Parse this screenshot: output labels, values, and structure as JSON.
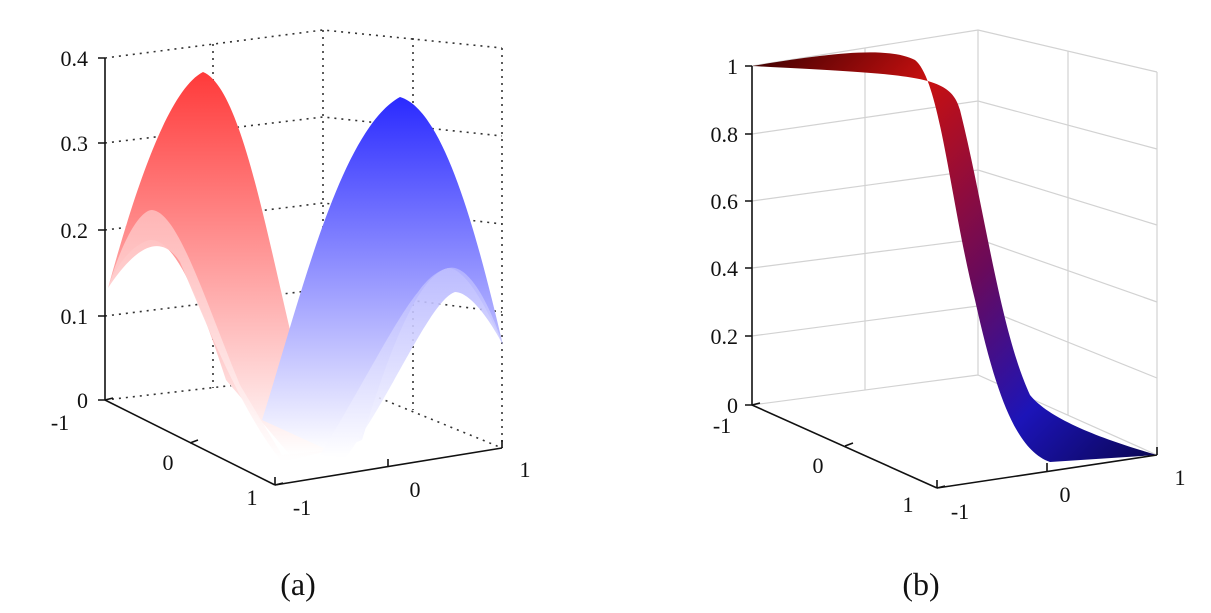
{
  "chart_data": [
    {
      "type": "surface",
      "caption": "(a)",
      "zlabels": [
        "0",
        "0.1",
        "0.2",
        "0.3",
        "0.4"
      ],
      "zlim": [
        0,
        0.4
      ],
      "xlabels": [
        "-1",
        "0",
        "1"
      ],
      "ylabels": [
        "-1",
        "0",
        "1"
      ],
      "xlim": [
        -1,
        1
      ],
      "ylim": [
        -1,
        1
      ],
      "grid": "dotted",
      "colors": {
        "front": "#ff2a2a",
        "back": "#2a2aff",
        "low": "#ffffff"
      },
      "peak_heights": {
        "red": 0.36,
        "blue": 0.35,
        "red_inner": 0.19,
        "blue_inner": 0.17
      }
    },
    {
      "type": "surface",
      "caption": "(b)",
      "zlabels": [
        "0",
        "0.2",
        "0.4",
        "0.6",
        "0.8",
        "1"
      ],
      "zlim": [
        0,
        1
      ],
      "xlabels": [
        "-1",
        "0",
        "1"
      ],
      "ylabels": [
        "-1",
        "0",
        "1"
      ],
      "xlim": [
        -1,
        1
      ],
      "ylim": [
        -1,
        1
      ],
      "grid": "solid",
      "colors": {
        "high": "#cc1010",
        "low": "#1a10cc",
        "shade": "#3a0000"
      },
      "surface_z": {
        "start": 1.0,
        "end": 0.0,
        "midpoint": 0.5
      }
    }
  ]
}
